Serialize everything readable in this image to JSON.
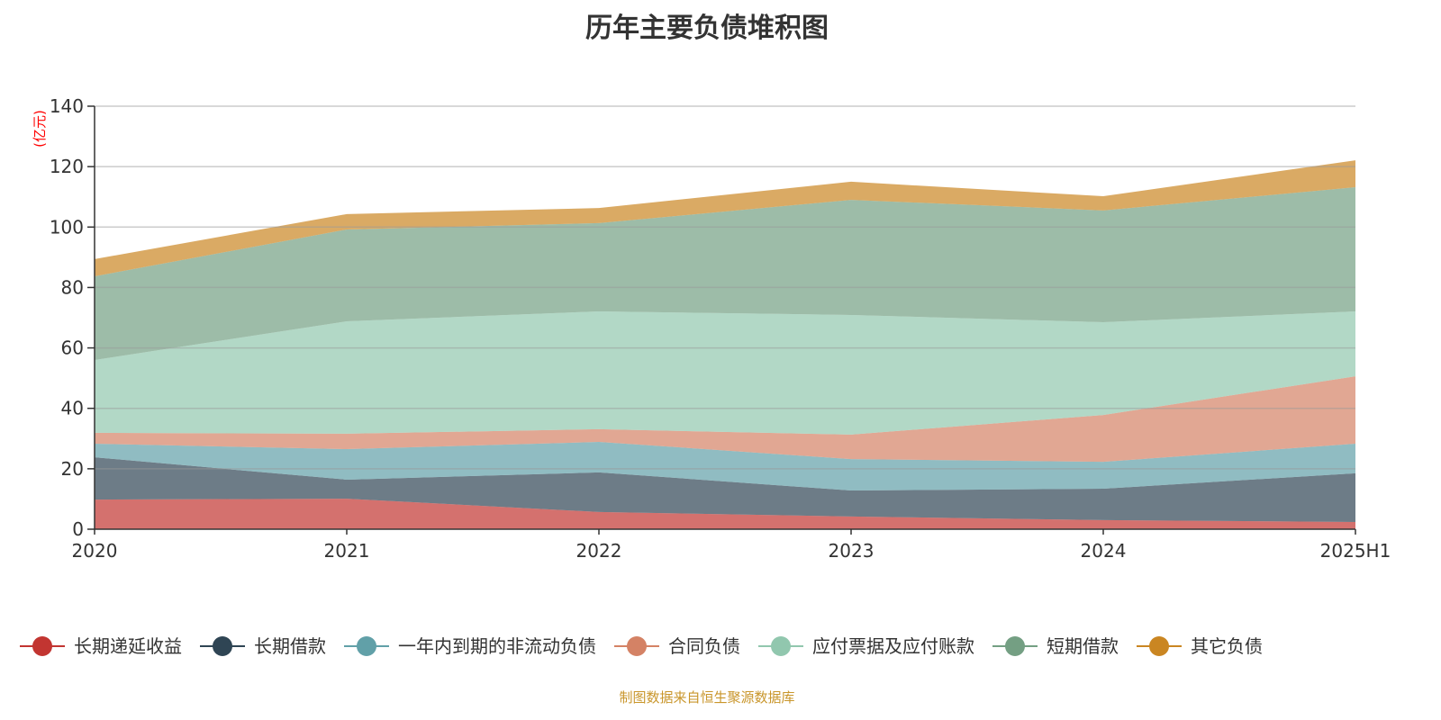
{
  "chart_data": {
    "type": "area",
    "stacked": true,
    "title": "历年主要负债堆积图",
    "ylabel": "(亿元)",
    "xlabel": "",
    "categories": [
      "2020",
      "2021",
      "2022",
      "2023",
      "2024",
      "2025H1"
    ],
    "ylim": [
      0,
      140
    ],
    "yticks": [
      0,
      20,
      40,
      60,
      80,
      100,
      120,
      140
    ],
    "grid": true,
    "legend_position": "bottom",
    "series": [
      {
        "name": "长期递延收益",
        "color": "#c23531",
        "values": [
          9.8,
          10.1,
          5.7,
          4.2,
          3.0,
          2.4
        ]
      },
      {
        "name": "长期借款",
        "color": "#2f4554",
        "values": [
          14.0,
          6.3,
          13.1,
          8.6,
          10.4,
          16.1
        ]
      },
      {
        "name": "一年内到期的非流动负债",
        "color": "#61a0a8",
        "values": [
          4.5,
          10.1,
          10.1,
          10.4,
          8.9,
          9.8
        ]
      },
      {
        "name": "合同负债",
        "color": "#d48265",
        "values": [
          3.6,
          5.1,
          4.2,
          8.1,
          15.5,
          22.3
        ]
      },
      {
        "name": "应付票据及应付账款",
        "color": "#91c7ae",
        "values": [
          24.1,
          37.2,
          39.0,
          39.6,
          30.7,
          21.5
        ]
      },
      {
        "name": "短期借款",
        "color": "#749f83",
        "values": [
          27.7,
          30.4,
          29.2,
          38.1,
          37.0,
          41.1
        ]
      },
      {
        "name": "其它负债",
        "color": "#ca8622",
        "values": [
          5.7,
          5.1,
          5.0,
          6.0,
          4.7,
          8.9
        ]
      }
    ]
  },
  "footer": "制图数据来自恒生聚源数据库"
}
